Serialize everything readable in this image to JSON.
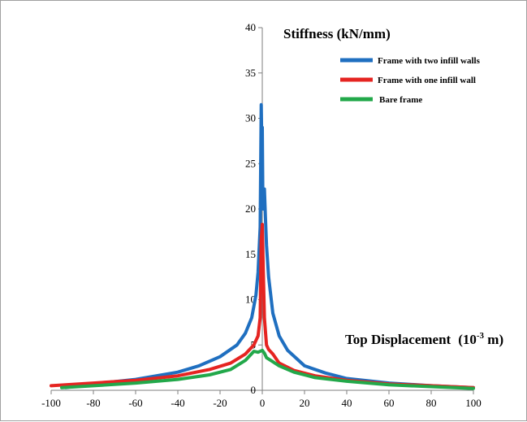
{
  "chart_data": {
    "type": "line",
    "title": "",
    "ylabel": "Stiffness (kN/mm)",
    "xlabel": "Top Displacement",
    "xlabel_unit": "(10",
    "xlabel_unit_exp": "-3",
    "xlabel_unit_suffix": " m)",
    "xlim": [
      -100,
      100
    ],
    "ylim": [
      0,
      40
    ],
    "xticks": [
      -100,
      -80,
      -60,
      -40,
      -20,
      0,
      20,
      40,
      60,
      80,
      100
    ],
    "yticks": [
      0,
      5,
      10,
      15,
      20,
      25,
      30,
      35,
      40
    ],
    "grid": false,
    "legend_position": "top-right",
    "series": [
      {
        "name": "Frame with two infill walls",
        "color": "#1f6fc0",
        "x": [
          -93,
          -80,
          -60,
          -40,
          -30,
          -20,
          -12,
          -8,
          -5,
          -3,
          -2,
          -1,
          -0.5,
          -0.2,
          0,
          0.3,
          0.6,
          1,
          1.5,
          2,
          3,
          5,
          8,
          12,
          20,
          30,
          40,
          60,
          80,
          100
        ],
        "y": [
          0.3,
          0.7,
          1.2,
          2.0,
          2.7,
          3.7,
          5.0,
          6.3,
          8.0,
          10.5,
          13.0,
          18.0,
          31.5,
          26.5,
          29.0,
          20.0,
          21.0,
          22.2,
          19.0,
          16.0,
          12.5,
          8.5,
          6.0,
          4.4,
          2.7,
          1.9,
          1.3,
          0.8,
          0.5,
          0.3
        ]
      },
      {
        "name": "Frame with one infill wall",
        "color": "#e52421",
        "x": [
          -100,
          -80,
          -60,
          -40,
          -25,
          -15,
          -8,
          -4,
          -2,
          -1,
          -0.5,
          0,
          0.5,
          1,
          2,
          3,
          5,
          8,
          15,
          25,
          40,
          60,
          80,
          100
        ],
        "y": [
          0.5,
          0.8,
          1.1,
          1.6,
          2.3,
          3.0,
          4.0,
          5.0,
          6.0,
          8.0,
          16.5,
          18.3,
          13.0,
          8.0,
          5.0,
          4.5,
          4.0,
          3.0,
          2.2,
          1.6,
          1.1,
          0.7,
          0.5,
          0.3
        ]
      },
      {
        "name": "Bare frame",
        "color": "#22a84a",
        "x": [
          -95,
          -80,
          -60,
          -40,
          -25,
          -15,
          -8,
          -4,
          -2,
          0,
          1,
          2,
          4,
          8,
          15,
          25,
          40,
          60,
          80,
          100
        ],
        "y": [
          0.3,
          0.5,
          0.8,
          1.2,
          1.7,
          2.3,
          3.3,
          4.3,
          4.2,
          4.4,
          4.1,
          3.6,
          3.3,
          2.7,
          2.0,
          1.4,
          1.0,
          0.6,
          0.4,
          0.2
        ]
      }
    ]
  }
}
